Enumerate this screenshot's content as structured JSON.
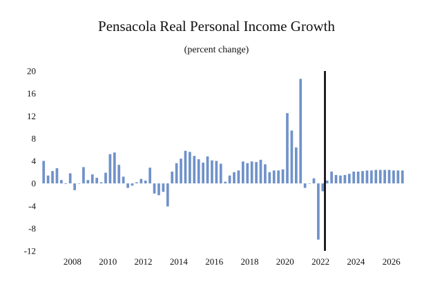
{
  "chart_data": {
    "type": "bar",
    "title": "Pensacola Real Personal Income Growth",
    "subtitle": "(percent change)",
    "xlabel": "",
    "ylabel": "",
    "ylim": [
      -12,
      20
    ],
    "y_ticks": [
      -12,
      -8,
      -4,
      0,
      4,
      8,
      12,
      16,
      20
    ],
    "x_tick_labels": [
      "2008",
      "2010",
      "2012",
      "2014",
      "2016",
      "2018",
      "2020",
      "2022",
      "2024",
      "2026"
    ],
    "x_range_years": [
      2006.25,
      2026.75
    ],
    "forecast_start_year": 2022.25,
    "bar_color": "#7092c9",
    "divider_color": "#000000",
    "grid": false,
    "start_year": 2006,
    "start_quarter": 2,
    "values": [
      4.0,
      1.4,
      2.2,
      2.7,
      0.6,
      -0.1,
      1.8,
      -1.2,
      0.0,
      2.9,
      0.6,
      1.6,
      1.0,
      0.2,
      1.9,
      5.2,
      5.5,
      3.3,
      1.2,
      -0.8,
      -0.4,
      0.2,
      0.8,
      0.5,
      2.8,
      -1.8,
      -2.1,
      -1.5,
      -4.1,
      2.1,
      3.6,
      4.4,
      5.8,
      5.6,
      4.9,
      4.3,
      3.7,
      4.8,
      4.1,
      4.0,
      3.5,
      0.3,
      1.4,
      2.0,
      2.3,
      3.9,
      3.6,
      3.9,
      3.8,
      4.2,
      3.4,
      2.0,
      2.3,
      2.3,
      2.5,
      12.5,
      9.4,
      6.4,
      18.6,
      -0.8,
      0.0,
      0.9,
      -10.0,
      -1.4,
      0.5,
      2.1,
      1.5,
      1.4,
      1.5,
      1.7,
      2.1,
      2.1,
      2.2,
      2.3,
      2.3,
      2.4,
      2.4,
      2.4,
      2.4,
      2.3,
      2.3,
      2.3
    ]
  }
}
